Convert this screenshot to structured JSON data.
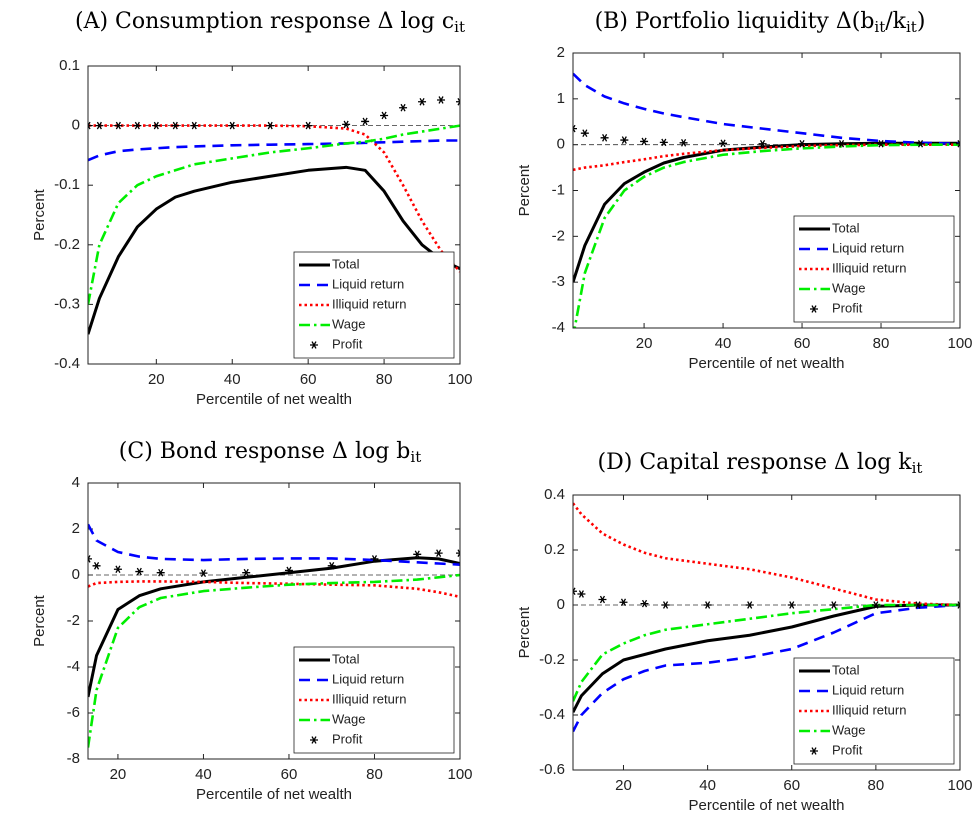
{
  "chart_data": [
    {
      "type": "line",
      "title": [
        {
          "text": "(A) Consumption response Δ log c"
        },
        {
          "sub": "it"
        }
      ],
      "xlabel": "Percentile of net wealth",
      "ylabel": "Percent",
      "xlim": [
        2,
        100
      ],
      "ylim": [
        -0.4,
        0.1
      ],
      "xticks": [
        20,
        40,
        60,
        80,
        100
      ],
      "yticks": [
        -0.4,
        -0.3,
        -0.2,
        -0.1,
        0,
        0.1
      ],
      "zero_line": true,
      "legend": "lower right",
      "x": [
        2,
        5,
        10,
        15,
        20,
        25,
        30,
        40,
        50,
        60,
        70,
        75,
        80,
        85,
        90,
        95,
        100
      ],
      "series": [
        {
          "name": "Total",
          "color": "#000000",
          "style": "solid",
          "values": [
            -0.35,
            -0.29,
            -0.22,
            -0.17,
            -0.14,
            -0.12,
            -0.11,
            -0.095,
            -0.085,
            -0.075,
            -0.07,
            -0.075,
            -0.11,
            -0.16,
            -0.2,
            -0.225,
            -0.24
          ]
        },
        {
          "name": "Liquid return",
          "color": "#0000ff",
          "style": "dashed",
          "values": [
            -0.058,
            -0.05,
            -0.043,
            -0.04,
            -0.038,
            -0.036,
            -0.035,
            -0.033,
            -0.032,
            -0.031,
            -0.03,
            -0.029,
            -0.028,
            -0.027,
            -0.026,
            -0.025,
            -0.025
          ]
        },
        {
          "name": "Illiquid return",
          "color": "#ff0000",
          "style": "dotted",
          "values": [
            0,
            0,
            0,
            0,
            0,
            0,
            0,
            0,
            0,
            -0.001,
            -0.005,
            -0.015,
            -0.045,
            -0.1,
            -0.16,
            -0.21,
            -0.245
          ]
        },
        {
          "name": "Wage",
          "color": "#00ee00",
          "style": "dashdot",
          "values": [
            -0.3,
            -0.2,
            -0.13,
            -0.1,
            -0.085,
            -0.075,
            -0.065,
            -0.055,
            -0.045,
            -0.038,
            -0.03,
            -0.027,
            -0.022,
            -0.015,
            -0.01,
            -0.005,
            0
          ]
        },
        {
          "name": "Profit",
          "color": "#000000",
          "style": "markers",
          "values": [
            0,
            0,
            0,
            0,
            0,
            0,
            0,
            0,
            0,
            0,
            0.002,
            0.007,
            0.017,
            0.03,
            0.04,
            0.043,
            0.04
          ]
        }
      ]
    },
    {
      "type": "line",
      "title": [
        {
          "text": "(B) Portfolio liquidity Δ(b"
        },
        {
          "sub": "it"
        },
        {
          "text": "/k"
        },
        {
          "sub": "it"
        },
        {
          "text": ")"
        }
      ],
      "xlabel": "Percentile of net wealth",
      "ylabel": "Percent",
      "xlim": [
        2,
        100
      ],
      "ylim": [
        -4,
        2
      ],
      "xticks": [
        20,
        40,
        60,
        80,
        100
      ],
      "yticks": [
        -4,
        -3,
        -2,
        -1,
        0,
        1,
        2
      ],
      "zero_line": true,
      "legend": "lower right",
      "x": [
        2,
        5,
        10,
        15,
        20,
        25,
        30,
        40,
        50,
        60,
        70,
        80,
        90,
        100
      ],
      "series": [
        {
          "name": "Total",
          "color": "#000000",
          "style": "solid",
          "values": [
            -3.0,
            -2.2,
            -1.3,
            -0.85,
            -0.6,
            -0.4,
            -0.28,
            -0.12,
            -0.05,
            0,
            0.02,
            0.03,
            0.03,
            0.03
          ]
        },
        {
          "name": "Liquid return",
          "color": "#0000ff",
          "style": "dashed",
          "values": [
            1.55,
            1.3,
            1.05,
            0.9,
            0.78,
            0.68,
            0.6,
            0.45,
            0.35,
            0.25,
            0.15,
            0.08,
            0.04,
            0.02
          ]
        },
        {
          "name": "Illiquid return",
          "color": "#ff0000",
          "style": "dotted",
          "values": [
            -0.55,
            -0.5,
            -0.45,
            -0.38,
            -0.32,
            -0.25,
            -0.2,
            -0.12,
            -0.07,
            -0.03,
            -0.01,
            0,
            0,
            0
          ]
        },
        {
          "name": "Wage",
          "color": "#00ee00",
          "style": "dashdot",
          "values": [
            -4.2,
            -2.8,
            -1.6,
            -1.0,
            -0.7,
            -0.5,
            -0.38,
            -0.22,
            -0.14,
            -0.08,
            -0.04,
            -0.01,
            0,
            0
          ]
        },
        {
          "name": "Profit",
          "color": "#000000",
          "style": "markers",
          "values": [
            0.35,
            0.25,
            0.15,
            0.1,
            0.07,
            0.05,
            0.04,
            0.03,
            0.02,
            0.02,
            0.02,
            0.02,
            0.02,
            0.02
          ]
        }
      ]
    },
    {
      "type": "line",
      "title": [
        {
          "text": "(C) Bond response Δ log b"
        },
        {
          "sub": "it"
        }
      ],
      "xlabel": "Percentile of net wealth",
      "ylabel": "Percent",
      "xlim": [
        13,
        100
      ],
      "ylim": [
        -8,
        4
      ],
      "xticks": [
        20,
        40,
        60,
        80,
        100
      ],
      "yticks": [
        -8,
        -6,
        -4,
        -2,
        0,
        2,
        4
      ],
      "zero_line": true,
      "legend": "lower right",
      "x": [
        13,
        15,
        20,
        25,
        30,
        40,
        50,
        60,
        70,
        80,
        90,
        95,
        100
      ],
      "series": [
        {
          "name": "Total",
          "color": "#000000",
          "style": "solid",
          "values": [
            -5.3,
            -3.5,
            -1.5,
            -0.9,
            -0.6,
            -0.3,
            -0.1,
            0.1,
            0.3,
            0.6,
            0.75,
            0.7,
            0.5
          ]
        },
        {
          "name": "Liquid return",
          "color": "#0000ff",
          "style": "dashed",
          "values": [
            2.2,
            1.5,
            1.0,
            0.8,
            0.7,
            0.65,
            0.7,
            0.72,
            0.72,
            0.65,
            0.55,
            0.5,
            0.45
          ]
        },
        {
          "name": "Illiquid return",
          "color": "#ff0000",
          "style": "dotted",
          "values": [
            -0.5,
            -0.35,
            -0.3,
            -0.28,
            -0.28,
            -0.3,
            -0.35,
            -0.38,
            -0.42,
            -0.45,
            -0.6,
            -0.75,
            -0.95
          ]
        },
        {
          "name": "Wage",
          "color": "#00ee00",
          "style": "dashdot",
          "values": [
            -7.5,
            -5,
            -2.3,
            -1.4,
            -1.0,
            -0.7,
            -0.55,
            -0.42,
            -0.35,
            -0.3,
            -0.2,
            -0.1,
            0
          ]
        },
        {
          "name": "Profit",
          "color": "#000000",
          "style": "markers",
          "values": [
            0.7,
            0.4,
            0.25,
            0.15,
            0.1,
            0.08,
            0.1,
            0.2,
            0.4,
            0.7,
            0.9,
            0.95,
            0.95
          ]
        }
      ]
    },
    {
      "type": "line",
      "title": [
        {
          "text": "(D) Capital response Δ log k"
        },
        {
          "sub": "it"
        }
      ],
      "xlabel": "Percentile of net wealth",
      "ylabel": "Percent",
      "xlim": [
        8,
        100
      ],
      "ylim": [
        -0.6,
        0.4
      ],
      "xticks": [
        20,
        40,
        60,
        80,
        100
      ],
      "yticks": [
        -0.6,
        -0.4,
        -0.2,
        0,
        0.2,
        0.4
      ],
      "zero_line": true,
      "legend": "lower right",
      "x": [
        8,
        10,
        15,
        20,
        25,
        30,
        40,
        50,
        60,
        70,
        80,
        90,
        100
      ],
      "series": [
        {
          "name": "Total",
          "color": "#000000",
          "style": "solid",
          "values": [
            -0.39,
            -0.33,
            -0.25,
            -0.2,
            -0.18,
            -0.16,
            -0.13,
            -0.11,
            -0.08,
            -0.04,
            -0.005,
            0,
            0
          ]
        },
        {
          "name": "Liquid return",
          "color": "#0000ff",
          "style": "dashed",
          "values": [
            -0.46,
            -0.4,
            -0.32,
            -0.27,
            -0.24,
            -0.22,
            -0.21,
            -0.19,
            -0.16,
            -0.1,
            -0.03,
            -0.01,
            0
          ]
        },
        {
          "name": "Illiquid return",
          "color": "#ff0000",
          "style": "dotted",
          "values": [
            0.37,
            0.33,
            0.26,
            0.22,
            0.19,
            0.17,
            0.15,
            0.13,
            0.1,
            0.06,
            0.02,
            0.005,
            0
          ]
        },
        {
          "name": "Wage",
          "color": "#00ee00",
          "style": "dashdot",
          "values": [
            -0.35,
            -0.28,
            -0.18,
            -0.14,
            -0.11,
            -0.09,
            -0.07,
            -0.05,
            -0.03,
            -0.015,
            0,
            0,
            0
          ]
        },
        {
          "name": "Profit",
          "color": "#000000",
          "style": "markers",
          "values": [
            0.05,
            0.04,
            0.02,
            0.01,
            0.005,
            0,
            0,
            0,
            0,
            0,
            0,
            0,
            0
          ]
        }
      ]
    }
  ]
}
